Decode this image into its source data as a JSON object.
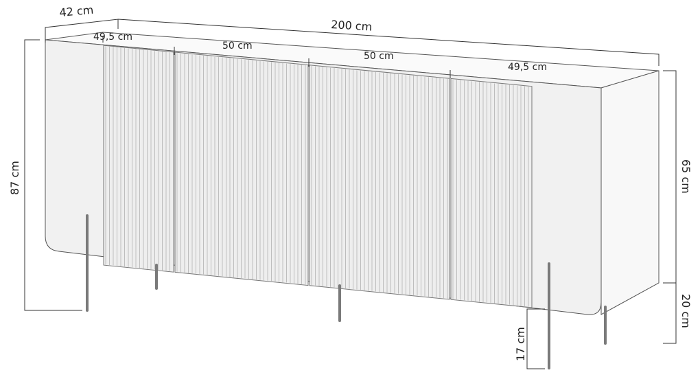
{
  "dimensions": {
    "depth": "42 cm",
    "width": "200 cm",
    "door_1": "49,5 cm",
    "door_2": "50 cm",
    "door_3": "50 cm",
    "door_4": "49,5 cm",
    "total_height": "87 cm",
    "body_height": "65 cm",
    "leg_height": "20 cm",
    "floor_clearance": "17 cm"
  },
  "colors": {
    "body": "#f2f2f2",
    "side": "#f7f7f7",
    "flutes": "#bdbdbd",
    "legs": "#8a8a8a"
  }
}
